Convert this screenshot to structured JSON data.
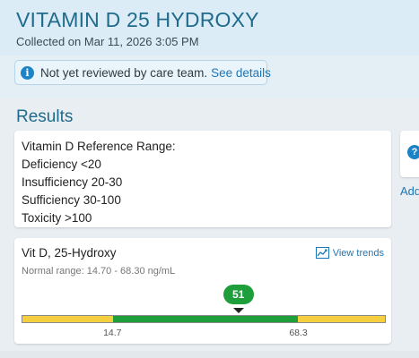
{
  "header": {
    "title": "VITAMIN D 25 HYDROXY",
    "collected": "Collected on Mar 11, 2026 3:05 PM"
  },
  "banner": {
    "icon": "info-icon",
    "text": "Not yet reviewed by care team.",
    "link": "See details"
  },
  "results": {
    "title": "Results",
    "reference": [
      "Vitamin D Reference Range:",
      "Deficiency <20",
      "Insufficiency 20-30",
      "Sufficiency 30-100",
      "Toxicity >100"
    ],
    "side_label": "Add",
    "item": {
      "name": "Vit D, 25-Hydroxy",
      "trends_label": "View trends",
      "normal_range": "Normal range: 14.70 - 68.30 ng/mL",
      "value": 51,
      "value_label": "51",
      "low": 14.7,
      "high": 68.3,
      "low_label": "14.7",
      "high_label": "68.3",
      "scale_min": -11.5,
      "scale_max": 93.5,
      "colors": {
        "normal": "#1f9e3c",
        "out_of_range": "#f5cf3f"
      }
    }
  }
}
